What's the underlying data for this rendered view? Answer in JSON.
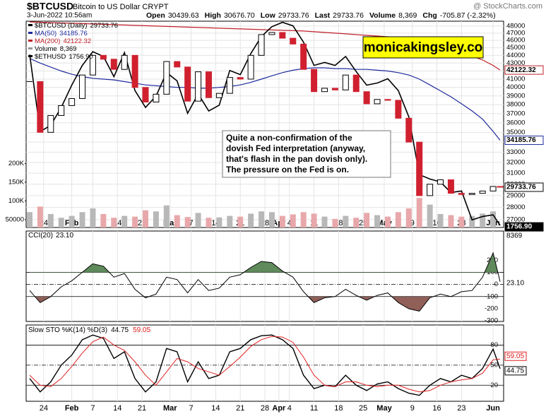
{
  "header": {
    "symbol": "$BTCUSD",
    "name": "Bitcoin to US Dollar  CRYPT",
    "source": "@ StockCharts.com",
    "date": "3-Jun-2022 10:56am",
    "stats": [
      {
        "label": "Open",
        "value": "30439.63"
      },
      {
        "label": "High",
        "value": "30676.70"
      },
      {
        "label": "Low",
        "value": "29733.76"
      },
      {
        "label": "Last",
        "value": "29733.76"
      },
      {
        "label": "Volume",
        "value": "8,369"
      },
      {
        "label": "Chg",
        "value": "-705.87 (-2.32%)"
      }
    ]
  },
  "chart_data": [
    {
      "type": "candlestick",
      "x": [
        "2022-01-20",
        "2022-01-23",
        "2022-01-26",
        "2022-01-29",
        "2022-02-01",
        "2022-02-04",
        "2022-02-07",
        "2022-02-10",
        "2022-02-13",
        "2022-02-16",
        "2022-02-19",
        "2022-02-22",
        "2022-02-25",
        "2022-02-28",
        "2022-03-03",
        "2022-03-06",
        "2022-03-09",
        "2022-03-12",
        "2022-03-15",
        "2022-03-18",
        "2022-03-21",
        "2022-03-24",
        "2022-03-27",
        "2022-03-30",
        "2022-04-02",
        "2022-04-05",
        "2022-04-08",
        "2022-04-11",
        "2022-04-14",
        "2022-04-17",
        "2022-04-20",
        "2022-04-23",
        "2022-04-26",
        "2022-04-29",
        "2022-05-02",
        "2022-05-05",
        "2022-05-08",
        "2022-05-11",
        "2022-05-14",
        "2022-05-17",
        "2022-05-20",
        "2022-05-23",
        "2022-05-26",
        "2022-05-29",
        "2022-06-01",
        "2022-06-03"
      ],
      "xlim": [
        "2022-01-19",
        "2022-06-04"
      ],
      "xticks": [
        {
          "value": "2022-01-24",
          "label": "24"
        },
        {
          "value": "2022-02-01",
          "label": "Feb"
        },
        {
          "value": "2022-02-07",
          "label": "7"
        },
        {
          "value": "2022-02-14",
          "label": "14"
        },
        {
          "value": "2022-02-21",
          "label": "21"
        },
        {
          "value": "2022-03-01",
          "label": "Mar"
        },
        {
          "value": "2022-03-07",
          "label": "7"
        },
        {
          "value": "2022-03-14",
          "label": "14"
        },
        {
          "value": "2022-03-21",
          "label": "21"
        },
        {
          "value": "2022-03-28",
          "label": "28"
        },
        {
          "value": "2022-04-01",
          "label": "Apr"
        },
        {
          "value": "2022-04-04",
          "label": "4"
        },
        {
          "value": "2022-04-11",
          "label": "11"
        },
        {
          "value": "2022-04-18",
          "label": "18"
        },
        {
          "value": "2022-04-25",
          "label": "25"
        },
        {
          "value": "2022-05-01",
          "label": "May"
        },
        {
          "value": "2022-05-09",
          "label": "9"
        },
        {
          "value": "2022-05-16",
          "label": "16"
        },
        {
          "value": "2022-05-23",
          "label": "23"
        },
        {
          "value": "2022-06-01",
          "label": "Jun"
        }
      ],
      "log_scale": true,
      "ylim": [
        26380,
        48700
      ],
      "yticks": [
        27000,
        28000,
        29000,
        30000,
        31000,
        32000,
        33000,
        34000,
        35000,
        36000,
        37000,
        38000,
        39000,
        40000,
        41000,
        42000,
        43000,
        44000,
        45000,
        46000,
        47000,
        48000
      ],
      "y2lim": [
        1745,
        3463
      ],
      "y3lim": [
        29000,
        580000
      ],
      "y3ticks": [
        50000,
        {
          "value": 100000,
          "label": "100K"
        },
        {
          "value": 150000,
          "label": "150K"
        },
        {
          "value": 200000,
          "label": "200K"
        }
      ],
      "series": [
        {
          "name": "$BTCUSD (Daily)",
          "color": "#000000",
          "down_color": "#d0202f",
          "values": [
            40700,
            35000,
            36800,
            37900,
            38700,
            41500,
            44000,
            43500,
            42200,
            44000,
            40000,
            38300,
            39200,
            43200,
            42500,
            38400,
            41900,
            38800,
            39300,
            41200,
            41000,
            44000,
            46800,
            47100,
            46300,
            45500,
            42200,
            39500,
            39900,
            39700,
            41500,
            39500,
            38100,
            38600,
            38500,
            36500,
            34000,
            29000,
            30000,
            30400,
            29200,
            29100,
            29200,
            29400,
            29800,
            29733.76
          ]
        },
        {
          "name": "MA(50)",
          "color": "#1f2a9c",
          "values": [
            43600,
            43000,
            42500,
            42000,
            41600,
            41300,
            41100,
            41000,
            40900,
            40700,
            40500,
            40300,
            40200,
            40100,
            40000,
            40000,
            39900,
            39900,
            40000,
            40100,
            40300,
            40600,
            41000,
            41400,
            41800,
            42100,
            42300,
            42400,
            42400,
            42300,
            42300,
            42200,
            42200,
            42100,
            42000,
            41800,
            41500,
            41000,
            40300,
            39600,
            38900,
            38100,
            37300,
            36400,
            35100,
            34185.76
          ]
        },
        {
          "name": "MA(200)",
          "color": "#c0202a",
          "values": [
            48600,
            48550,
            48500,
            48450,
            48400,
            48350,
            48300,
            48250,
            48200,
            48150,
            48100,
            48050,
            48000,
            47950,
            47900,
            47850,
            47800,
            47750,
            47700,
            47650,
            47600,
            47550,
            47500,
            47450,
            47400,
            47350,
            47300,
            47200,
            47100,
            47000,
            46900,
            46800,
            46700,
            46600,
            46500,
            46300,
            46100,
            45800,
            45500,
            45200,
            44800,
            44400,
            43900,
            43400,
            42700,
            42122.32
          ]
        },
        {
          "name": "Volume",
          "color": "#b8b8b8",
          "down_color": "#e8a8ab",
          "axis": "y3",
          "last_label": "8,369",
          "values": [
            70000,
            85000,
            65000,
            55000,
            60000,
            70000,
            80000,
            65000,
            55000,
            60000,
            58000,
            75000,
            72000,
            88000,
            62000,
            57000,
            68000,
            55000,
            56000,
            60000,
            58000,
            66000,
            72000,
            70000,
            60000,
            64000,
            70000,
            66000,
            58000,
            52000,
            60000,
            55000,
            68000,
            62000,
            58000,
            70000,
            80000,
            108000,
            90000,
            65000,
            62000,
            58000,
            60000,
            66000,
            72000,
            8369
          ]
        },
        {
          "name": "$ETHUSD",
          "color": "#000000",
          "axis": "y2",
          "last_label": "1756.90",
          "values": [
            3100,
            2400,
            2450,
            2600,
            2800,
            2990,
            3130,
            3080,
            2880,
            3120,
            2750,
            2600,
            2700,
            2920,
            2840,
            2550,
            2720,
            2570,
            2620,
            2940,
            2900,
            3110,
            3290,
            3400,
            3450,
            3410,
            3230,
            2990,
            3020,
            2990,
            3080,
            2930,
            2800,
            2820,
            2860,
            2750,
            2520,
            2080,
            2050,
            2030,
            1960,
            1970,
            1790,
            1810,
            1820,
            1756.9
          ]
        }
      ],
      "annotation": [
        "Quite a non-confirmation of the",
        "dovish Fed interpretation (anyway,",
        "that's flash in the pan dovish only).",
        "The pressure on the Fed is on."
      ],
      "watermark": "monicakingsley.co"
    },
    {
      "type": "cci",
      "ylim": [
        -305,
        440
      ],
      "yticks": [
        -300,
        -200,
        -100,
        0,
        100,
        200
      ],
      "bands": [
        -100,
        0,
        100
      ],
      "series": [
        {
          "name": "CCI(20)",
          "color": "#000000",
          "fill_above": "#5f8a5c",
          "fill_below": "#8f5f58",
          "last_label": "23.10",
          "values": [
            -50,
            -150,
            -100,
            -20,
            30,
            100,
            170,
            150,
            60,
            90,
            -40,
            -110,
            -80,
            60,
            40,
            -70,
            40,
            -50,
            -30,
            60,
            80,
            140,
            190,
            180,
            110,
            60,
            -60,
            -150,
            -110,
            -100,
            -40,
            -90,
            -130,
            -90,
            -70,
            -150,
            -200,
            -220,
            -110,
            -80,
            -100,
            -60,
            -50,
            60,
            260,
            23.1
          ]
        }
      ]
    },
    {
      "type": "line",
      "title": "Slow STO %K(14) %D(3)",
      "ylim": [
        -4,
        110
      ],
      "yticks": [
        20,
        50,
        80
      ],
      "bands": [
        20,
        50,
        80
      ],
      "series": [
        {
          "name": "%K",
          "color": "#000000",
          "values": [
            30,
            10,
            25,
            50,
            65,
            88,
            95,
            90,
            60,
            70,
            30,
            10,
            25,
            75,
            70,
            25,
            55,
            30,
            35,
            70,
            75,
            88,
            94,
            95,
            88,
            75,
            35,
            15,
            20,
            18,
            35,
            20,
            12,
            22,
            25,
            15,
            8,
            5,
            20,
            30,
            25,
            35,
            30,
            45,
            74,
            44.75
          ]
        },
        {
          "name": "%D",
          "color": "#e02020",
          "values": [
            35,
            20,
            18,
            30,
            48,
            68,
            85,
            92,
            80,
            72,
            55,
            35,
            20,
            40,
            60,
            55,
            45,
            40,
            35,
            48,
            62,
            78,
            88,
            93,
            92,
            84,
            62,
            35,
            20,
            18,
            25,
            25,
            20,
            18,
            20,
            20,
            14,
            10,
            12,
            20,
            25,
            28,
            30,
            38,
            58,
            59.05
          ]
        }
      ]
    }
  ]
}
